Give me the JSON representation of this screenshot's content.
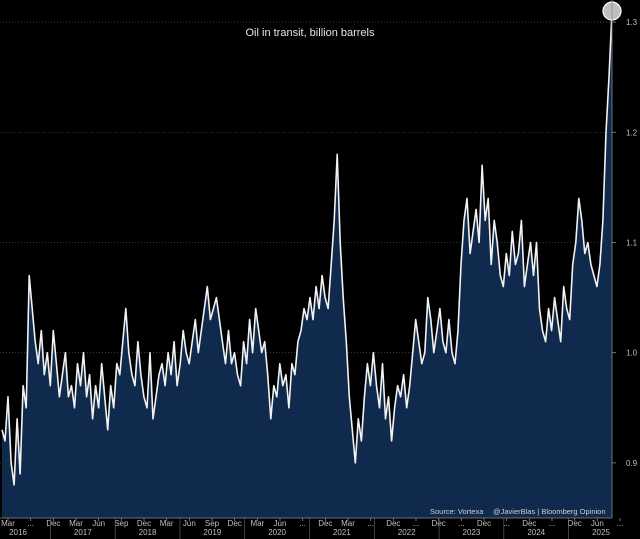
{
  "chart_data": {
    "type": "area",
    "title": "Oil in transit, billion barrels",
    "ylim": [
      0.85,
      1.32
    ],
    "yticks": [
      "0.9",
      "1.0",
      "1.1",
      "1.2",
      "1.3"
    ],
    "month_labels": [
      "Mar",
      "...",
      "Dec",
      "Mar",
      "Jun",
      "Sep",
      "Dec",
      "Mar",
      "Jun",
      "Sep",
      "Dec",
      "Mar",
      "Jun",
      "...",
      "Dec",
      "Mar",
      "...",
      "Dec",
      "...",
      "Dec",
      "...",
      "Dec",
      "...",
      "Dec",
      "...",
      "Dec",
      "Jun",
      "..."
    ],
    "year_labels": [
      "2016",
      "2017",
      "2018",
      "2019",
      "2020",
      "2021",
      "2022",
      "2023",
      "2024",
      "2025"
    ],
    "source": "Source: Vortexa",
    "credit": "@JavierBlas | Bloomberg Opinion",
    "series": [
      {
        "name": "Oil in transit",
        "x_start": "2016-03",
        "frequency": "weekly",
        "values": [
          0.93,
          0.92,
          0.96,
          0.9,
          0.88,
          0.94,
          0.89,
          0.97,
          0.95,
          1.07,
          1.04,
          1.01,
          0.99,
          1.02,
          0.98,
          1.0,
          0.97,
          1.02,
          0.99,
          0.96,
          0.98,
          1.0,
          0.96,
          0.97,
          0.95,
          0.99,
          0.97,
          1.0,
          0.96,
          0.98,
          0.94,
          0.97,
          0.95,
          0.99,
          0.96,
          0.93,
          0.97,
          0.95,
          0.99,
          0.98,
          1.01,
          1.04,
          1.0,
          0.98,
          0.97,
          1.01,
          0.98,
          0.96,
          0.95,
          1.0,
          0.94,
          0.96,
          0.98,
          0.99,
          0.97,
          1.0,
          0.98,
          1.01,
          0.97,
          0.99,
          1.02,
          1.0,
          0.99,
          1.01,
          1.03,
          1.0,
          1.02,
          1.04,
          1.06,
          1.03,
          1.04,
          1.05,
          1.03,
          1.01,
          0.99,
          1.02,
          0.99,
          1.0,
          0.98,
          0.97,
          1.01,
          0.99,
          1.03,
          1.0,
          1.04,
          1.02,
          1.0,
          1.01,
          0.98,
          0.94,
          0.97,
          0.96,
          0.99,
          0.97,
          0.98,
          0.95,
          0.99,
          0.98,
          1.01,
          1.02,
          1.04,
          1.03,
          1.05,
          1.03,
          1.06,
          1.04,
          1.07,
          1.05,
          1.04,
          1.08,
          1.12,
          1.18,
          1.1,
          1.05,
          1.01,
          0.96,
          0.93,
          0.9,
          0.94,
          0.92,
          0.96,
          0.99,
          0.97,
          1.0,
          0.97,
          0.95,
          0.99,
          0.94,
          0.96,
          0.92,
          0.95,
          0.97,
          0.96,
          0.98,
          0.95,
          0.97,
          1.0,
          1.03,
          1.01,
          0.99,
          1.0,
          1.05,
          1.03,
          1.0,
          1.02,
          1.04,
          1.01,
          1.0,
          1.03,
          1.0,
          0.99,
          1.02,
          1.08,
          1.12,
          1.14,
          1.09,
          1.11,
          1.13,
          1.1,
          1.17,
          1.12,
          1.14,
          1.08,
          1.12,
          1.1,
          1.07,
          1.06,
          1.09,
          1.07,
          1.11,
          1.08,
          1.09,
          1.12,
          1.06,
          1.08,
          1.1,
          1.07,
          1.1,
          1.04,
          1.02,
          1.01,
          1.04,
          1.02,
          1.05,
          1.03,
          1.01,
          1.06,
          1.04,
          1.03,
          1.08,
          1.1,
          1.14,
          1.12,
          1.09,
          1.1,
          1.08,
          1.07,
          1.06,
          1.08,
          1.12,
          1.2,
          1.25,
          1.31
        ]
      }
    ]
  }
}
